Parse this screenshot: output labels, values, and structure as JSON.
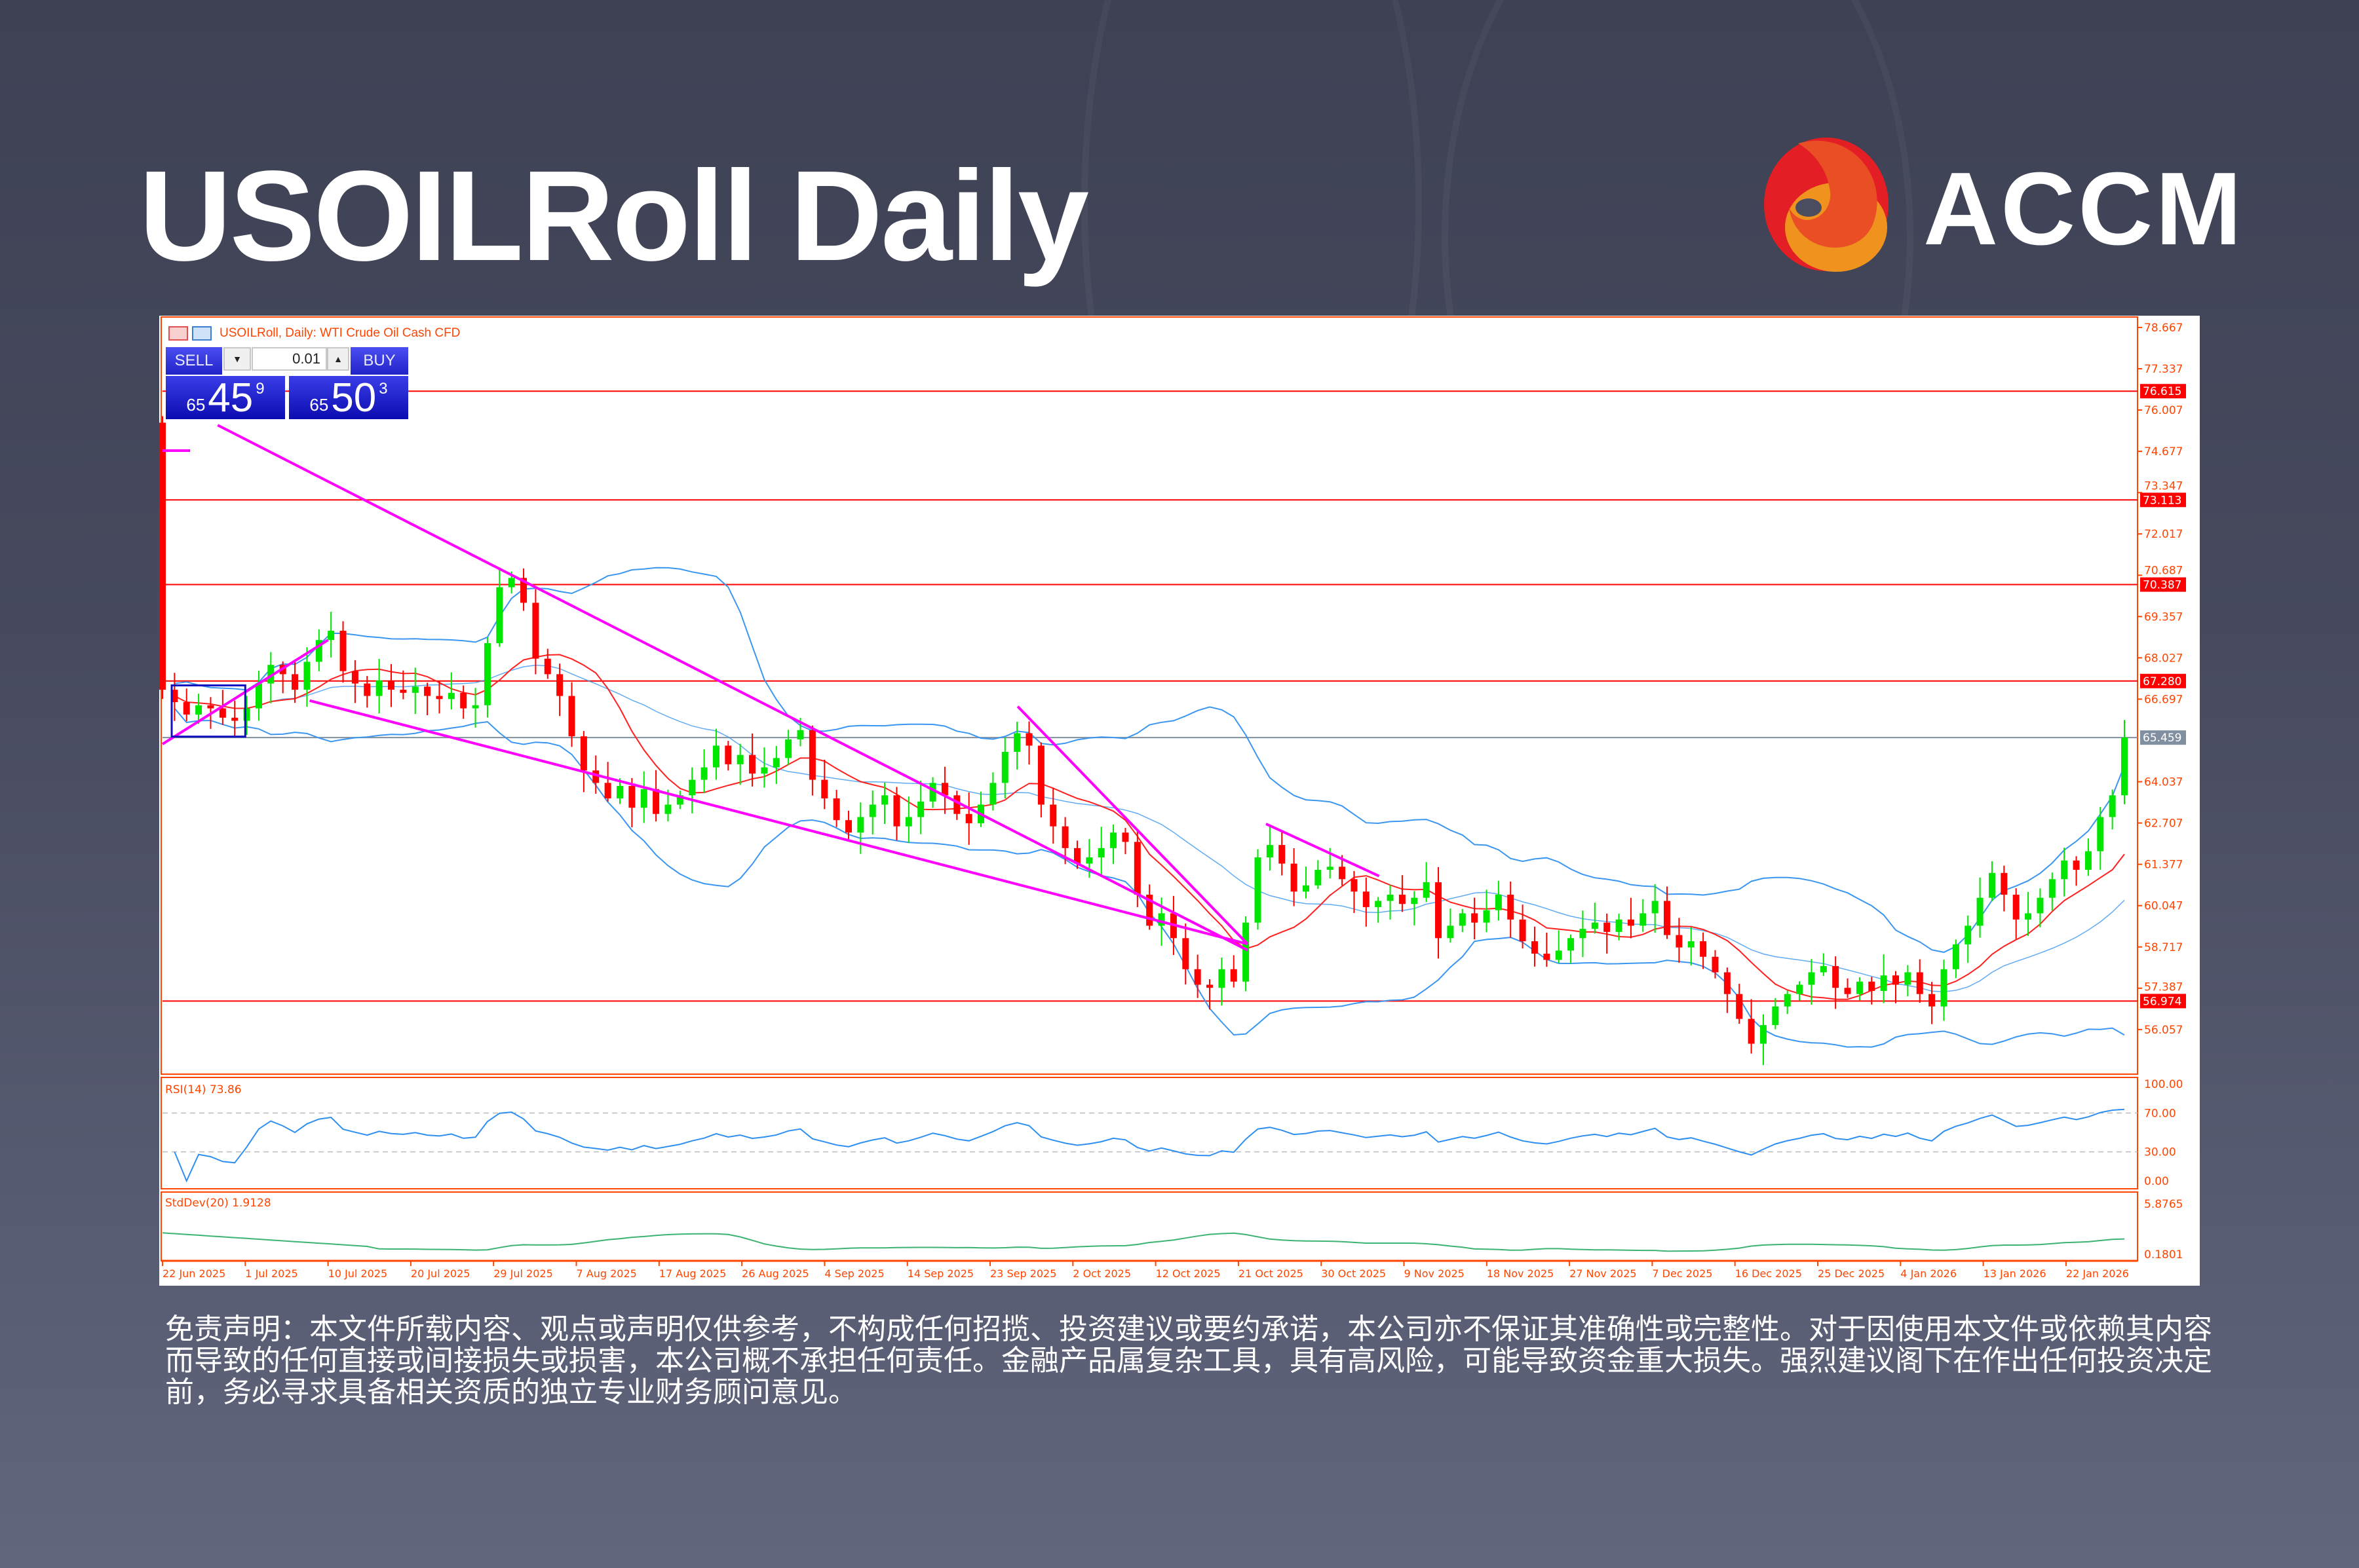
{
  "title": "USOILRoll Daily",
  "brand": {
    "name": "ACCM",
    "logo_colors": [
      "#e31e24",
      "#e94e24",
      "#f0931e"
    ]
  },
  "chart": {
    "header": "USOILRoll, Daily:  WTI Crude Oil Cash CFD",
    "trade_panel": {
      "sell_label": "SELL",
      "buy_label": "BUY",
      "lot": "0.01",
      "sell": {
        "big": "65",
        "main": "45",
        "sup": "9"
      },
      "buy": {
        "big": "65",
        "main": "50",
        "sup": "3"
      }
    },
    "rsi_label": "RSI(14) 73.86",
    "stddev_label": "StdDev(20) 1.9128"
  },
  "chart_data": {
    "type": "candlestick",
    "title": "USOILRoll, Daily:  WTI Crude Oil Cash CFD",
    "ylim": [
      54.62,
      78.94
    ],
    "grid": false,
    "colors": {
      "bull": "#00e600",
      "bear": "#ff0000",
      "ma": "#ff2020",
      "bands": "#3a96f0",
      "trendline": "#ff00ff",
      "level": "#ff0000",
      "current": "#8090a0",
      "axis": "#ff4500"
    },
    "price_ticks": [
      "78.667",
      "77.337",
      "76.007",
      "74.677",
      "73.347",
      "72.017",
      "70.687",
      "69.357",
      "68.027",
      "66.697",
      "64.037",
      "62.707",
      "61.377",
      "60.047",
      "58.717",
      "57.387",
      "56.057"
    ],
    "x_labels": [
      "22 Jun 2025",
      "1 Jul 2025",
      "10 Jul 2025",
      "20 Jul 2025",
      "29 Jul 2025",
      "7 Aug 2025",
      "17 Aug 2025",
      "26 Aug 2025",
      "4 Sep 2025",
      "14 Sep 2025",
      "23 Sep 2025",
      "2 Oct 2025",
      "12 Oct 2025",
      "21 Oct 2025",
      "30 Oct 2025",
      "9 Nov 2025",
      "18 Nov 2025",
      "27 Nov 2025",
      "7 Dec 2025",
      "16 Dec 2025",
      "25 Dec 2025",
      "4 Jan 2026",
      "13 Jan 2026",
      "22 Jan 2026"
    ],
    "first_open": 75.6,
    "closes": [
      67.0,
      66.6,
      66.2,
      66.5,
      66.4,
      66.1,
      66.0,
      66.4,
      67.2,
      67.8,
      67.5,
      67.0,
      67.9,
      68.6,
      68.9,
      67.6,
      67.2,
      66.8,
      67.3,
      67.0,
      66.9,
      67.1,
      66.8,
      66.7,
      66.9,
      66.4,
      66.5,
      68.5,
      70.3,
      70.6,
      69.8,
      68.0,
      67.5,
      66.8,
      65.5,
      64.4,
      64.0,
      63.5,
      63.9,
      63.2,
      63.8,
      63.0,
      63.3,
      63.6,
      64.1,
      64.5,
      65.2,
      64.6,
      64.9,
      64.3,
      64.5,
      64.8,
      65.4,
      65.7,
      64.1,
      63.5,
      62.8,
      62.4,
      62.9,
      63.3,
      63.6,
      62.6,
      62.9,
      63.4,
      64.0,
      63.6,
      63.0,
      62.7,
      63.3,
      64.0,
      65.0,
      65.6,
      65.2,
      63.3,
      62.6,
      61.9,
      61.4,
      61.6,
      61.9,
      62.4,
      62.1,
      60.4,
      59.4,
      59.8,
      59.0,
      58.0,
      57.5,
      57.4,
      58.0,
      57.6,
      59.5,
      61.6,
      62.0,
      61.4,
      60.5,
      60.7,
      61.2,
      61.3,
      60.9,
      60.5,
      60.0,
      60.2,
      60.4,
      60.1,
      60.3,
      60.8,
      59.0,
      59.4,
      59.8,
      59.5,
      59.9,
      60.4,
      59.6,
      58.9,
      58.5,
      58.3,
      58.6,
      59.0,
      59.3,
      59.5,
      59.2,
      59.6,
      59.4,
      59.8,
      60.2,
      59.1,
      58.7,
      58.9,
      58.4,
      57.9,
      57.2,
      56.4,
      55.6,
      56.2,
      56.8,
      57.2,
      57.5,
      57.9,
      58.1,
      57.4,
      57.2,
      57.6,
      57.3,
      57.8,
      57.5,
      57.9,
      57.2,
      56.8,
      58.0,
      58.8,
      59.4,
      60.3,
      61.1,
      60.4,
      59.6,
      59.8,
      60.3,
      60.9,
      61.5,
      61.2,
      61.8,
      62.9,
      63.6,
      65.459
    ],
    "levels": [
      {
        "price": "76.615",
        "kind": "resistance"
      },
      {
        "price": "73.113",
        "kind": "resistance"
      },
      {
        "price": "70.387",
        "kind": "resistance"
      },
      {
        "price": "67.280",
        "kind": "resistance"
      },
      {
        "price": "65.459",
        "kind": "current"
      },
      {
        "price": "56.974",
        "kind": "support"
      }
    ],
    "trendlines": [
      {
        "from": [
          "28 Jun 2025",
          75.52
        ],
        "to": [
          "22 Oct 2025",
          58.61
        ]
      },
      {
        "from": [
          "8 Jul 2025",
          66.65
        ],
        "to": [
          "22 Oct 2025",
          58.81
        ]
      },
      {
        "from": [
          "22 Jun 2025",
          65.25
        ],
        "to": [
          "10 Jul 2025",
          68.6
        ]
      },
      {
        "from": [
          "26 Sep 2025",
          66.46
        ],
        "to": [
          "22 Oct 2025",
          58.81
        ]
      },
      {
        "from": [
          "24 Oct 2025",
          62.68
        ],
        "to": [
          "6 Nov 2025",
          61.0
        ]
      },
      {
        "from": [
          "22 Jun 2025",
          74.7
        ],
        "to": [
          "25 Jun 2025",
          74.7
        ]
      }
    ],
    "range_box": {
      "from": "23 Jun 2025",
      "to": "1 Jul 2025",
      "high": 67.14,
      "low": 65.49
    },
    "indicators": {
      "ma": {
        "period": 10
      },
      "bollinger": {
        "period": 20,
        "deviations": 2
      },
      "rsi": {
        "period": 14,
        "ylim": [
          0,
          100
        ],
        "levels": [
          70,
          30
        ],
        "ticks": [
          "100.00",
          "70.00",
          "30.00",
          "0.00"
        ],
        "value": 73.86
      },
      "stddev": {
        "period": 20,
        "ticks": [
          "5.8765",
          "0.1801"
        ],
        "ylim": [
          0.1801,
          5.8765
        ],
        "value": 1.9128
      }
    }
  },
  "disclaimer": "免责声明：本文件所载内容、观点或声明仅供参考，不构成任何招揽、投资建议或要约承诺，本公司亦不保证其准确性或完整性。对于因使用本文件或依赖其内容而导致的任何直接或间接损失或损害，本公司概不承担任何责任。金融产品属复杂工具，具有高风险，可能导致资金重大损失。强烈建议阁下在作出任何投资决定前，务必寻求具备相关资质的独立专业财务顾问意见。"
}
